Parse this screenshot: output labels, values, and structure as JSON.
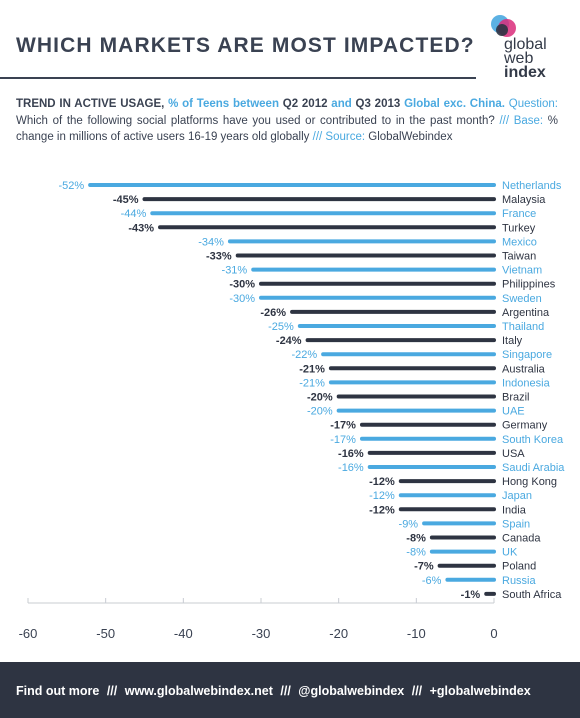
{
  "header": {
    "title": "WHICH MARKETS ARE MOST IMPACTED?",
    "logo": {
      "line1": "global",
      "line2": "web",
      "line3": "index"
    }
  },
  "intro": {
    "trend_label": "TREND IN ACTIVE USAGE,",
    "teens_label": "% of Teens between",
    "q_start": "Q2 2012",
    "and_text": "and",
    "q_end": "Q3 2013",
    "scope": "Global exc. China.",
    "question_label": "Question:",
    "question_text": "Which of the following social platforms have you used or contributed to in the past month?",
    "sep": "///",
    "base_label": "Base:",
    "base_text": "% change in millions of active users 16-19 years old globally",
    "source_label": "Source:",
    "source_text": "GlobalWebindex"
  },
  "colors": {
    "blue": "#4aa9e0",
    "dark": "#2e3442",
    "axis": "#c8ccd2"
  },
  "chart_data": {
    "type": "bar",
    "orientation": "horizontal",
    "categories": [
      "Netherlands",
      "Malaysia",
      "France",
      "Turkey",
      "Mexico",
      "Taiwan",
      "Vietnam",
      "Philippines",
      "Sweden",
      "Argentina",
      "Thailand",
      "Italy",
      "Singapore",
      "Australia",
      "Indonesia",
      "Brazil",
      "UAE",
      "Germany",
      "South Korea",
      "USA",
      "Saudi Arabia",
      "Hong Kong",
      "Japan",
      "India",
      "Spain",
      "Canada",
      "UK",
      "Poland",
      "Russia",
      "South Africa"
    ],
    "values": [
      -52,
      -45,
      -44,
      -43,
      -34,
      -33,
      -31,
      -30,
      -30,
      -26,
      -25,
      -24,
      -22,
      -21,
      -21,
      -20,
      -20,
      -17,
      -17,
      -16,
      -16,
      -12,
      -12,
      -12,
      -9,
      -8,
      -8,
      -7,
      -6,
      -1
    ],
    "value_labels": [
      "-52%",
      "-45%",
      "-44%",
      "-43%",
      "-34%",
      "-33%",
      "-31%",
      "-30%",
      "-30%",
      "-26%",
      "-25%",
      "-24%",
      "-22%",
      "-21%",
      "-21%",
      "-20%",
      "-20%",
      "-17%",
      "-17%",
      "-16%",
      "-16%",
      "-12%",
      "-12%",
      "-12%",
      "-9%",
      "-8%",
      "-8%",
      "-7%",
      "-6%",
      "-1%"
    ],
    "xlim": [
      -60,
      0
    ],
    "xticks": [
      -60,
      -50,
      -40,
      -30,
      -20,
      -10,
      0
    ],
    "tick_labels": [
      "-60",
      "-50",
      "-40",
      "-30",
      "-20",
      "-10",
      "0"
    ],
    "bar_color_pattern": [
      "blue",
      "dark"
    ],
    "grid": false,
    "legend": "none"
  },
  "footer": {
    "find_label": "Find out more",
    "sep": "///",
    "website": "www.globalwebindex.net",
    "twitter": "@globalwebindex",
    "gplus": "+globalwebindex"
  }
}
